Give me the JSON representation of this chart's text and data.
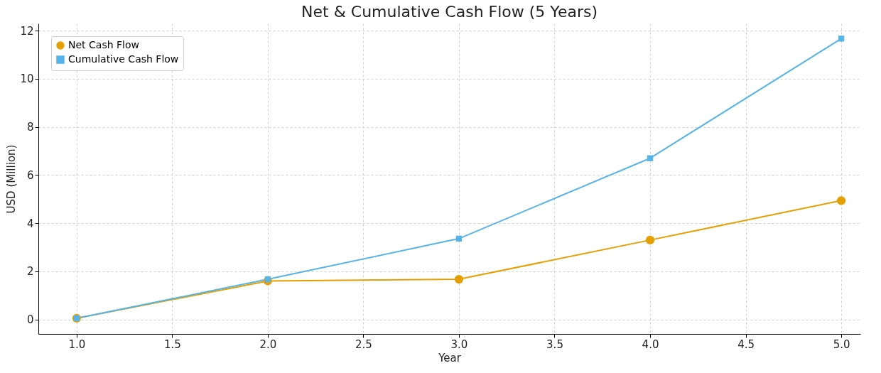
{
  "chart_data": {
    "type": "line",
    "title": "Net & Cumulative Cash Flow (5 Years)",
    "xlabel": "Year",
    "ylabel": "USD (Million)",
    "x": [
      1,
      2,
      3,
      4,
      5
    ],
    "series": [
      {
        "name": "Net Cash Flow",
        "color": "#e69f00",
        "marker": "circle",
        "values": [
          0.05,
          1.6,
          1.67,
          3.3,
          4.94
        ]
      },
      {
        "name": "Cumulative Cash Flow",
        "color": "#56b4e9",
        "marker": "square",
        "values": [
          0.05,
          1.67,
          3.36,
          6.7,
          11.67
        ]
      }
    ],
    "xlim": [
      0.8,
      5.1
    ],
    "ylim": [
      -0.6,
      12.3
    ],
    "xticks": [
      {
        "value": 1,
        "label": "1.0"
      },
      {
        "value": 1.5,
        "label": "1.5"
      },
      {
        "value": 2,
        "label": "2.0"
      },
      {
        "value": 2.5,
        "label": "2.5"
      },
      {
        "value": 3,
        "label": "3.0"
      },
      {
        "value": 3.5,
        "label": "3.5"
      },
      {
        "value": 4,
        "label": "4.0"
      },
      {
        "value": 4.5,
        "label": "4.5"
      },
      {
        "value": 5,
        "label": "5.0"
      }
    ],
    "yticks": [
      0,
      2,
      4,
      6,
      8,
      10,
      12
    ],
    "grid": true,
    "legend": "top left",
    "line_style": "solid"
  }
}
